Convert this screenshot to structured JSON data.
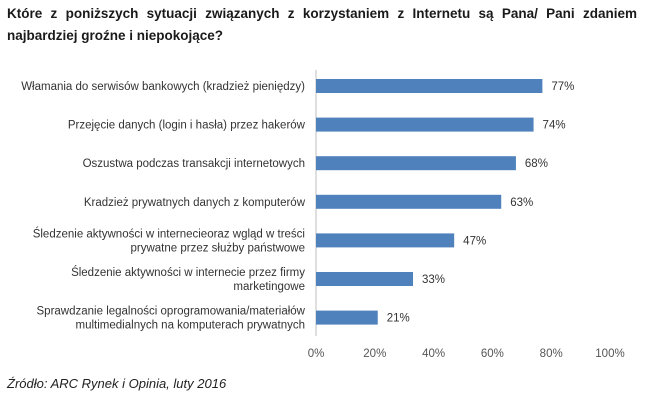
{
  "chart_data": {
    "type": "bar",
    "orientation": "horizontal",
    "title": "Które z poniższych sytuacji związanych z korzystaniem z Internetu są Pana/ Pani zdaniem najbardziej groźne i niepokojące?",
    "categories": [
      [
        "Włamania do serwisów bankowych (kradzież pieniędzy)"
      ],
      [
        "Przejęcie danych (login i hasła) przez hakerów"
      ],
      [
        "Oszustwa podczas transakcji internetowych"
      ],
      [
        "Kradzież prywatnych danych z komputerów"
      ],
      [
        "Śledzenie aktywności w internecieoraz wgląd w treści",
        "prywatne przez służby państwowe"
      ],
      [
        "Śledzenie aktywności w internecie przez firmy",
        "marketingowe"
      ],
      [
        "Sprawdzanie legalności oprogramowania/materiałów",
        "multimedialnych na komputerach prywatnych"
      ]
    ],
    "values": [
      77,
      74,
      68,
      63,
      47,
      33,
      21
    ],
    "value_labels": [
      "77%",
      "74%",
      "68%",
      "63%",
      "47%",
      "33%",
      "21%"
    ],
    "xlim": [
      0,
      100
    ],
    "xticks": [
      0,
      20,
      40,
      60,
      80,
      100
    ],
    "xtick_labels": [
      "0%",
      "20%",
      "40%",
      "60%",
      "80%",
      "100%"
    ],
    "xlabel": "",
    "ylabel": "",
    "grid": false,
    "bar_color": "#4f81bd",
    "axis_color": "#bfbfbf"
  },
  "source": "Źródło: ARC Rynek i Opinia, luty 2016"
}
